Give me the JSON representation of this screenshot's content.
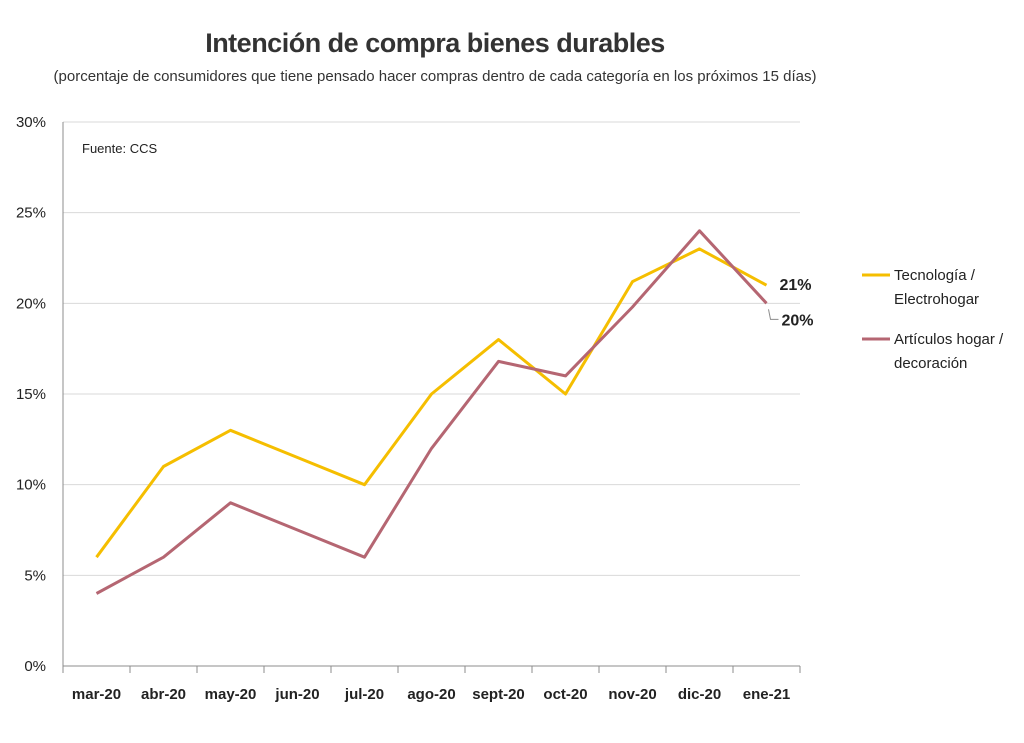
{
  "chart_data": {
    "type": "line",
    "title": "Intención de compra bienes durables",
    "subtitle": "(porcentaje de consumidores que tiene pensado hacer compras dentro de cada categoría en los próximos 15 días)",
    "source": "Fuente: CCS",
    "categories": [
      "mar-20",
      "abr-20",
      "may-20",
      "jun-20",
      "jul-20",
      "ago-20",
      "sept-20",
      "oct-20",
      "nov-20",
      "dic-20",
      "ene-21"
    ],
    "ylim": [
      0,
      30
    ],
    "yticks": [
      "0%",
      "5%",
      "10%",
      "15%",
      "20%",
      "25%",
      "30%"
    ],
    "grid": true,
    "legend_position": "right",
    "series": [
      {
        "name_lines": [
          "Tecnología /",
          "Electrohogar"
        ],
        "color": "#F5BE00",
        "values": [
          6,
          11,
          13,
          11.5,
          10,
          15,
          18,
          15,
          21.2,
          23,
          21
        ],
        "end_label": "21%"
      },
      {
        "name_lines": [
          "Artículos hogar /",
          "decoración"
        ],
        "color": "#B56672",
        "values": [
          4,
          6,
          9,
          7.5,
          6,
          12,
          16.8,
          16,
          19.8,
          24,
          20
        ],
        "end_label": "20%"
      }
    ]
  }
}
